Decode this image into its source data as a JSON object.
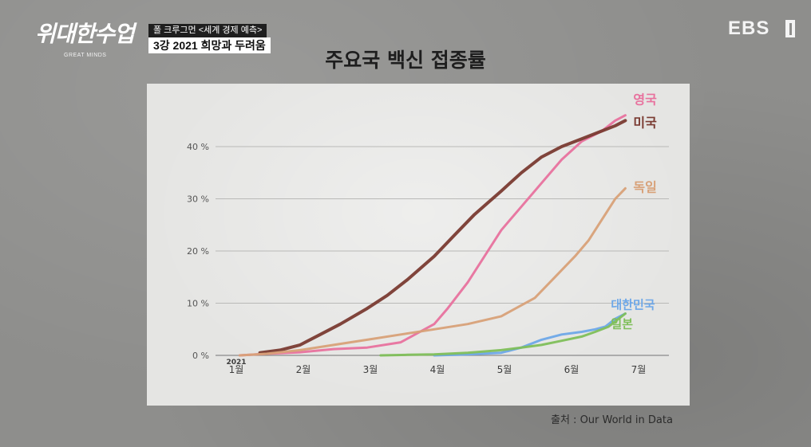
{
  "program": {
    "logo_text": "위대한수업",
    "logo_subtitle": "GREAT MINDS",
    "caption_line1": "폴 크루그먼 <세계 경제 예측>",
    "caption_line2": "3강  2021 희망과 두려움",
    "broadcaster": "EBS"
  },
  "source": "출처 : Our World in Data",
  "chart_data": {
    "type": "line",
    "title": "주요국 백신 접종률",
    "xlabel": "",
    "ylabel": "",
    "x_tick_labels": [
      "1월",
      "2월",
      "3월",
      "4월",
      "5월",
      "6월",
      "7월"
    ],
    "x_year_label": "2021",
    "x_range": [
      0,
      6.25
    ],
    "y_tick_labels": [
      "0 %",
      "10 %",
      "20 %",
      "30 %",
      "40 %"
    ],
    "ylim": [
      0,
      45
    ],
    "grid": true,
    "legend": "labels at line ends",
    "series": [
      {
        "name": "영국",
        "color": "#e8729e",
        "x": [
          0.1,
          0.5,
          1.0,
          1.5,
          2.0,
          2.5,
          3.0,
          3.2,
          3.5,
          3.8,
          4.0,
          4.3,
          4.6,
          4.9,
          5.2,
          5.5,
          5.7,
          5.85
        ],
        "values": [
          0,
          0.3,
          0.6,
          1.2,
          1.5,
          2.5,
          6,
          9,
          14,
          20,
          24,
          28.5,
          33,
          37.5,
          41,
          43,
          45,
          46
        ]
      },
      {
        "name": "미국",
        "color": "#7a3b32",
        "x": [
          0.4,
          0.7,
          1.0,
          1.3,
          1.6,
          2.0,
          2.3,
          2.6,
          3.0,
          3.3,
          3.6,
          4.0,
          4.3,
          4.6,
          4.9,
          5.2,
          5.5,
          5.7,
          5.85
        ],
        "values": [
          0.5,
          1,
          2,
          4,
          6,
          9,
          11.5,
          14.5,
          19,
          23,
          27,
          31.5,
          35,
          38,
          40,
          41.5,
          43,
          44,
          45
        ]
      },
      {
        "name": "독일",
        "color": "#d8a178",
        "x": [
          0.1,
          0.5,
          1.0,
          1.5,
          2.0,
          2.5,
          3.0,
          3.5,
          4.0,
          4.5,
          4.8,
          5.1,
          5.3,
          5.5,
          5.7,
          5.85
        ],
        "values": [
          0,
          0.3,
          1,
          2,
          3,
          4,
          5,
          6,
          7.5,
          11,
          15,
          19,
          22,
          26,
          30,
          32
        ]
      },
      {
        "name": "대한민국",
        "color": "#6ea8e8",
        "x": [
          3.0,
          3.5,
          4.0,
          4.3,
          4.6,
          4.9,
          5.2,
          5.4,
          5.55,
          5.7,
          5.85
        ],
        "values": [
          0,
          0.2,
          0.5,
          1.5,
          3,
          4,
          4.5,
          5,
          5.5,
          7,
          8
        ]
      },
      {
        "name": "일본",
        "color": "#7fbf5a",
        "x": [
          2.2,
          2.6,
          3.0,
          3.5,
          4.0,
          4.3,
          4.6,
          4.9,
          5.2,
          5.4,
          5.6,
          5.75,
          5.85
        ],
        "values": [
          0,
          0.1,
          0.2,
          0.5,
          1,
          1.5,
          2,
          2.8,
          3.6,
          4.5,
          5.5,
          7,
          8
        ]
      }
    ]
  }
}
